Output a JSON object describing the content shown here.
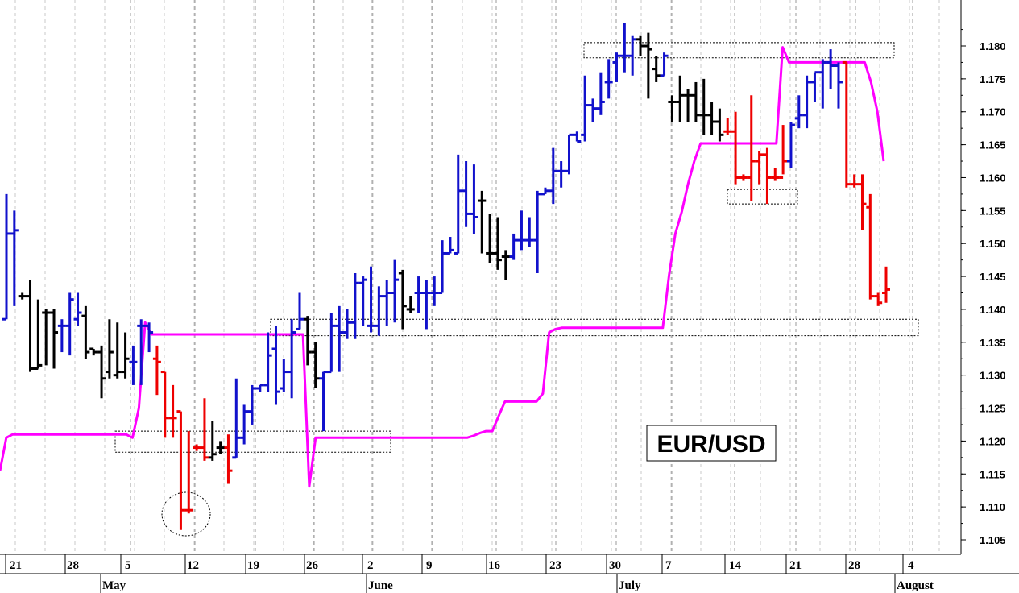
{
  "chart_data": {
    "type": "ohlc",
    "title": "EUR/USD",
    "ylim": [
      1.1015,
      1.1855
    ],
    "y_ticks": [
      "1.105",
      "1.110",
      "1.115",
      "1.120",
      "1.125",
      "1.130",
      "1.135",
      "1.140",
      "1.145",
      "1.150",
      "1.155",
      "1.160",
      "1.165",
      "1.170",
      "1.175",
      "1.180"
    ],
    "x_ticks": [
      "21",
      "28",
      "5",
      "12",
      "19",
      "26",
      "2",
      "9",
      "16",
      "23",
      "30",
      "7",
      "14",
      "21",
      "28",
      "4"
    ],
    "months": [
      "May",
      "June",
      "July",
      "August"
    ],
    "colors": {
      "up": "#1111cc",
      "down": "#ee0000",
      "neutral": "#000000",
      "stop_line": "#ff00ff"
    },
    "bars": [
      {
        "h": 1.1575,
        "l": 1.1385,
        "o": 1.1385,
        "c": 1.1515,
        "color": "up"
      },
      {
        "h": 1.155,
        "l": 1.1405,
        "o": 1.1515,
        "c": 1.152,
        "color": "up"
      },
      {
        "h": 1.1425,
        "l": 1.1415,
        "o": 1.142,
        "c": 1.142,
        "color": "neutral"
      },
      {
        "h": 1.1445,
        "l": 1.1305,
        "o": 1.142,
        "c": 1.131,
        "color": "neutral"
      },
      {
        "h": 1.1415,
        "l": 1.131,
        "o": 1.131,
        "c": 1.1315,
        "color": "neutral"
      },
      {
        "h": 1.14,
        "l": 1.1315,
        "o": 1.1395,
        "c": 1.1395,
        "color": "neutral"
      },
      {
        "h": 1.14,
        "l": 1.131,
        "o": 1.1395,
        "c": 1.1365,
        "color": "neutral"
      },
      {
        "h": 1.1385,
        "l": 1.1335,
        "o": 1.1375,
        "c": 1.1375,
        "color": "up"
      },
      {
        "h": 1.1425,
        "l": 1.133,
        "o": 1.1375,
        "c": 1.1415,
        "color": "up"
      },
      {
        "h": 1.1425,
        "l": 1.1375,
        "o": 1.1385,
        "c": 1.1395,
        "color": "up"
      },
      {
        "h": 1.1405,
        "l": 1.1325,
        "o": 1.139,
        "c": 1.1335,
        "color": "neutral"
      },
      {
        "h": 1.134,
        "l": 1.133,
        "o": 1.134,
        "c": 1.1335,
        "color": "neutral"
      },
      {
        "h": 1.1345,
        "l": 1.1265,
        "o": 1.1335,
        "c": 1.1295,
        "color": "neutral"
      },
      {
        "h": 1.1385,
        "l": 1.1295,
        "o": 1.1305,
        "c": 1.1335,
        "color": "neutral"
      },
      {
        "h": 1.138,
        "l": 1.1295,
        "o": 1.13,
        "c": 1.1305,
        "color": "neutral"
      },
      {
        "h": 1.1365,
        "l": 1.1295,
        "o": 1.1305,
        "c": 1.1325,
        "color": "neutral"
      },
      {
        "h": 1.1345,
        "l": 1.1285,
        "o": 1.132,
        "c": 1.132,
        "color": "up"
      },
      {
        "h": 1.1385,
        "l": 1.1285,
        "o": 1.1375,
        "c": 1.1375,
        "color": "up"
      },
      {
        "h": 1.138,
        "l": 1.1335,
        "o": 1.1375,
        "c": 1.1365,
        "color": "up"
      },
      {
        "h": 1.1345,
        "l": 1.127,
        "o": 1.1325,
        "c": 1.132,
        "color": "down"
      },
      {
        "h": 1.1305,
        "l": 1.1205,
        "o": 1.1305,
        "c": 1.1235,
        "color": "down"
      },
      {
        "h": 1.1285,
        "l": 1.1205,
        "o": 1.1235,
        "c": 1.1235,
        "color": "down"
      },
      {
        "h": 1.1245,
        "l": 1.1065,
        "o": 1.1245,
        "c": 1.1095,
        "color": "down"
      },
      {
        "h": 1.1215,
        "l": 1.109,
        "o": 1.1095,
        "c": 1.1095,
        "color": "down"
      },
      {
        "h": 1.1195,
        "l": 1.1185,
        "o": 1.119,
        "c": 1.119,
        "color": "down"
      },
      {
        "h": 1.1265,
        "l": 1.117,
        "o": 1.119,
        "c": 1.1175,
        "color": "down"
      },
      {
        "h": 1.123,
        "l": 1.117,
        "o": 1.1175,
        "c": 1.118,
        "color": "neutral"
      },
      {
        "h": 1.12,
        "l": 1.118,
        "o": 1.119,
        "c": 1.119,
        "color": "neutral"
      },
      {
        "h": 1.121,
        "l": 1.1135,
        "o": 1.119,
        "c": 1.1155,
        "color": "down"
      },
      {
        "h": 1.1295,
        "l": 1.1175,
        "o": 1.1175,
        "c": 1.1205,
        "color": "up"
      },
      {
        "h": 1.1255,
        "l": 1.1195,
        "o": 1.1205,
        "c": 1.1245,
        "color": "up"
      },
      {
        "h": 1.1285,
        "l": 1.1225,
        "o": 1.1245,
        "c": 1.128,
        "color": "up"
      },
      {
        "h": 1.1285,
        "l": 1.1275,
        "o": 1.128,
        "c": 1.1285,
        "color": "up"
      },
      {
        "h": 1.1365,
        "l": 1.1275,
        "o": 1.1285,
        "c": 1.133,
        "color": "up"
      },
      {
        "h": 1.1375,
        "l": 1.1255,
        "o": 1.134,
        "c": 1.1275,
        "color": "up"
      },
      {
        "h": 1.1325,
        "l": 1.1275,
        "o": 1.128,
        "c": 1.1305,
        "color": "up"
      },
      {
        "h": 1.1385,
        "l": 1.1265,
        "o": 1.1305,
        "c": 1.1365,
        "color": "up"
      },
      {
        "h": 1.1425,
        "l": 1.137,
        "o": 1.137,
        "c": 1.1385,
        "color": "up"
      },
      {
        "h": 1.139,
        "l": 1.1315,
        "o": 1.1385,
        "c": 1.1335,
        "color": "neutral"
      },
      {
        "h": 1.135,
        "l": 1.128,
        "o": 1.1335,
        "c": 1.1295,
        "color": "neutral"
      },
      {
        "h": 1.1305,
        "l": 1.1215,
        "o": 1.1295,
        "c": 1.1305,
        "color": "up"
      },
      {
        "h": 1.1395,
        "l": 1.1305,
        "o": 1.1305,
        "c": 1.1375,
        "color": "up"
      },
      {
        "h": 1.1405,
        "l": 1.1305,
        "o": 1.1375,
        "c": 1.1365,
        "color": "up"
      },
      {
        "h": 1.14,
        "l": 1.1355,
        "o": 1.1365,
        "c": 1.138,
        "color": "up"
      },
      {
        "h": 1.1455,
        "l": 1.1355,
        "o": 1.138,
        "c": 1.144,
        "color": "up"
      },
      {
        "h": 1.145,
        "l": 1.1375,
        "o": 1.144,
        "c": 1.1445,
        "color": "up"
      },
      {
        "h": 1.1465,
        "l": 1.1365,
        "o": 1.1375,
        "c": 1.1375,
        "color": "up"
      },
      {
        "h": 1.1435,
        "l": 1.136,
        "o": 1.1375,
        "c": 1.142,
        "color": "up"
      },
      {
        "h": 1.1445,
        "l": 1.1375,
        "o": 1.142,
        "c": 1.1425,
        "color": "up"
      },
      {
        "h": 1.1475,
        "l": 1.138,
        "o": 1.1425,
        "c": 1.1445,
        "color": "up"
      },
      {
        "h": 1.146,
        "l": 1.137,
        "o": 1.1455,
        "c": 1.1405,
        "color": "neutral"
      },
      {
        "h": 1.142,
        "l": 1.1395,
        "o": 1.14,
        "c": 1.14,
        "color": "neutral"
      },
      {
        "h": 1.145,
        "l": 1.1395,
        "o": 1.1425,
        "c": 1.1425,
        "color": "up"
      },
      {
        "h": 1.1445,
        "l": 1.137,
        "o": 1.1425,
        "c": 1.1425,
        "color": "up"
      },
      {
        "h": 1.145,
        "l": 1.1405,
        "o": 1.1425,
        "c": 1.1425,
        "color": "up"
      },
      {
        "h": 1.1505,
        "l": 1.1425,
        "o": 1.1425,
        "c": 1.1485,
        "color": "up"
      },
      {
        "h": 1.151,
        "l": 1.1485,
        "o": 1.1485,
        "c": 1.149,
        "color": "up"
      },
      {
        "h": 1.1635,
        "l": 1.1485,
        "o": 1.1485,
        "c": 1.158,
        "color": "up"
      },
      {
        "h": 1.1625,
        "l": 1.1525,
        "o": 1.158,
        "c": 1.1545,
        "color": "up"
      },
      {
        "h": 1.162,
        "l": 1.1515,
        "o": 1.1545,
        "c": 1.154,
        "color": "up"
      },
      {
        "h": 1.158,
        "l": 1.1485,
        "o": 1.1565,
        "c": 1.1565,
        "color": "neutral"
      },
      {
        "h": 1.1545,
        "l": 1.147,
        "o": 1.1485,
        "c": 1.1485,
        "color": "neutral"
      },
      {
        "h": 1.154,
        "l": 1.146,
        "o": 1.1485,
        "c": 1.1475,
        "color": "neutral"
      },
      {
        "h": 1.149,
        "l": 1.1445,
        "o": 1.148,
        "c": 1.148,
        "color": "neutral"
      },
      {
        "h": 1.1515,
        "l": 1.1475,
        "o": 1.148,
        "c": 1.1505,
        "color": "up"
      },
      {
        "h": 1.155,
        "l": 1.149,
        "o": 1.1505,
        "c": 1.1505,
        "color": "up"
      },
      {
        "h": 1.154,
        "l": 1.1495,
        "o": 1.1505,
        "c": 1.1505,
        "color": "up"
      },
      {
        "h": 1.158,
        "l": 1.1455,
        "o": 1.1505,
        "c": 1.1575,
        "color": "up"
      },
      {
        "h": 1.1585,
        "l": 1.1575,
        "o": 1.1575,
        "c": 1.158,
        "color": "up"
      },
      {
        "h": 1.1645,
        "l": 1.156,
        "o": 1.158,
        "c": 1.161,
        "color": "up"
      },
      {
        "h": 1.1625,
        "l": 1.1585,
        "o": 1.161,
        "c": 1.161,
        "color": "up"
      },
      {
        "h": 1.1665,
        "l": 1.1605,
        "o": 1.161,
        "c": 1.1665,
        "color": "up"
      },
      {
        "h": 1.167,
        "l": 1.1655,
        "o": 1.1665,
        "c": 1.1655,
        "color": "up"
      },
      {
        "h": 1.1755,
        "l": 1.1655,
        "o": 1.1665,
        "c": 1.171,
        "color": "up"
      },
      {
        "h": 1.172,
        "l": 1.1685,
        "o": 1.171,
        "c": 1.1705,
        "color": "up"
      },
      {
        "h": 1.176,
        "l": 1.1695,
        "o": 1.1705,
        "c": 1.1715,
        "color": "up"
      },
      {
        "h": 1.178,
        "l": 1.172,
        "o": 1.1745,
        "c": 1.1745,
        "color": "up"
      },
      {
        "h": 1.179,
        "l": 1.1745,
        "o": 1.1775,
        "c": 1.1785,
        "color": "up"
      },
      {
        "h": 1.1835,
        "l": 1.176,
        "o": 1.1785,
        "c": 1.1785,
        "color": "up"
      },
      {
        "h": 1.1815,
        "l": 1.1755,
        "o": 1.1785,
        "c": 1.181,
        "color": "up"
      },
      {
        "h": 1.1815,
        "l": 1.1785,
        "o": 1.181,
        "c": 1.18,
        "color": "neutral"
      },
      {
        "h": 1.182,
        "l": 1.172,
        "o": 1.18,
        "c": 1.1795,
        "color": "neutral"
      },
      {
        "h": 1.1785,
        "l": 1.1745,
        "o": 1.1765,
        "c": 1.1755,
        "color": "neutral"
      },
      {
        "h": 1.179,
        "l": 1.1755,
        "o": 1.1755,
        "c": 1.1785,
        "color": "up"
      },
      {
        "h": 1.1725,
        "l": 1.1685,
        "o": 1.1715,
        "c": 1.1715,
        "color": "neutral"
      },
      {
        "h": 1.1755,
        "l": 1.1685,
        "o": 1.1715,
        "c": 1.1725,
        "color": "neutral"
      },
      {
        "h": 1.1735,
        "l": 1.1685,
        "o": 1.1725,
        "c": 1.1725,
        "color": "neutral"
      },
      {
        "h": 1.1745,
        "l": 1.1685,
        "o": 1.1725,
        "c": 1.1695,
        "color": "neutral"
      },
      {
        "h": 1.175,
        "l": 1.1665,
        "o": 1.1695,
        "c": 1.1695,
        "color": "neutral"
      },
      {
        "h": 1.1715,
        "l": 1.1665,
        "o": 1.1695,
        "c": 1.1685,
        "color": "neutral"
      },
      {
        "h": 1.1705,
        "l": 1.1655,
        "o": 1.1685,
        "c": 1.1665,
        "color": "neutral"
      },
      {
        "h": 1.169,
        "l": 1.1665,
        "o": 1.167,
        "c": 1.167,
        "color": "down"
      },
      {
        "h": 1.17,
        "l": 1.159,
        "o": 1.167,
        "c": 1.16,
        "color": "down"
      },
      {
        "h": 1.1605,
        "l": 1.1595,
        "o": 1.16,
        "c": 1.16,
        "color": "down"
      },
      {
        "h": 1.1725,
        "l": 1.1565,
        "o": 1.16,
        "c": 1.1625,
        "color": "down"
      },
      {
        "h": 1.164,
        "l": 1.159,
        "o": 1.1625,
        "c": 1.1635,
        "color": "down"
      },
      {
        "h": 1.1645,
        "l": 1.156,
        "o": 1.1635,
        "c": 1.16,
        "color": "down"
      },
      {
        "h": 1.1615,
        "l": 1.1595,
        "o": 1.16,
        "c": 1.16,
        "color": "down"
      },
      {
        "h": 1.168,
        "l": 1.1605,
        "o": 1.16,
        "c": 1.1625,
        "color": "down"
      },
      {
        "h": 1.1685,
        "l": 1.1615,
        "o": 1.1625,
        "c": 1.168,
        "color": "up"
      },
      {
        "h": 1.1725,
        "l": 1.1675,
        "o": 1.169,
        "c": 1.1695,
        "color": "up"
      },
      {
        "h": 1.1755,
        "l": 1.1675,
        "o": 1.1695,
        "c": 1.1745,
        "color": "up"
      },
      {
        "h": 1.176,
        "l": 1.1715,
        "o": 1.1745,
        "c": 1.176,
        "color": "up"
      },
      {
        "h": 1.178,
        "l": 1.1705,
        "o": 1.176,
        "c": 1.1775,
        "color": "up"
      },
      {
        "h": 1.1795,
        "l": 1.1735,
        "o": 1.1775,
        "c": 1.177,
        "color": "up"
      },
      {
        "h": 1.1775,
        "l": 1.1705,
        "o": 1.177,
        "c": 1.1745,
        "color": "up"
      },
      {
        "h": 1.1775,
        "l": 1.1585,
        "o": 1.1775,
        "c": 1.159,
        "color": "down"
      },
      {
        "h": 1.1605,
        "l": 1.1585,
        "o": 1.159,
        "c": 1.159,
        "color": "down"
      },
      {
        "h": 1.1605,
        "l": 1.152,
        "o": 1.159,
        "c": 1.156,
        "color": "down"
      },
      {
        "h": 1.1575,
        "l": 1.1415,
        "o": 1.1555,
        "c": 1.142,
        "color": "down"
      },
      {
        "h": 1.1425,
        "l": 1.1405,
        "o": 1.142,
        "c": 1.141,
        "color": "down"
      },
      {
        "h": 1.1465,
        "l": 1.141,
        "o": 1.1425,
        "c": 1.143,
        "color": "down"
      }
    ],
    "stop_line": [
      1.1155,
      1.1205,
      1.121,
      1.121,
      1.121,
      1.121,
      1.121,
      1.121,
      1.121,
      1.121,
      1.121,
      1.121,
      1.121,
      1.121,
      1.121,
      1.121,
      1.121,
      1.121,
      1.121,
      1.121,
      1.121,
      1.1205,
      1.125,
      1.138,
      1.1362,
      1.1362,
      1.1362,
      1.1362,
      1.1362,
      1.1362,
      1.1362,
      1.1362,
      1.1362,
      1.1362,
      1.1362,
      1.1362,
      1.1362,
      1.1362,
      1.1362,
      1.1362,
      1.1362,
      1.1362,
      1.1362,
      1.1362,
      1.1362,
      1.1362,
      1.1362,
      1.1362,
      1.1362,
      1.1131,
      1.1205,
      1.1205,
      1.1205,
      1.1205,
      1.1205,
      1.1205,
      1.1205,
      1.1205,
      1.1205,
      1.1205,
      1.1205,
      1.1205,
      1.1205,
      1.1205,
      1.1205,
      1.1205,
      1.1205,
      1.1205,
      1.1205,
      1.1205,
      1.1205,
      1.1205,
      1.1205,
      1.1205,
      1.1205,
      1.1208,
      1.1212,
      1.1215,
      1.1215,
      1.1238,
      1.126,
      1.126,
      1.126,
      1.126,
      1.126,
      1.126,
      1.1272,
      1.1365,
      1.137,
      1.1372,
      1.1372,
      1.1372,
      1.1372,
      1.1372,
      1.1372,
      1.1372,
      1.1372,
      1.1372,
      1.1372,
      1.1372,
      1.1372,
      1.1372,
      1.1372,
      1.1372,
      1.1372,
      1.1372,
      1.1452,
      1.1515,
      1.1548,
      1.159,
      1.1625,
      1.1652,
      1.1652,
      1.1652,
      1.1652,
      1.1652,
      1.1652,
      1.1652,
      1.1652,
      1.1652,
      1.1652,
      1.1652,
      1.1652,
      1.1652,
      1.1798,
      1.1775,
      1.1775,
      1.1775,
      1.1775,
      1.1775,
      1.1775,
      1.1775,
      1.1775,
      1.1775,
      1.1775,
      1.1775,
      1.1775,
      1.1775,
      1.1745,
      1.17,
      1.1625
    ]
  }
}
